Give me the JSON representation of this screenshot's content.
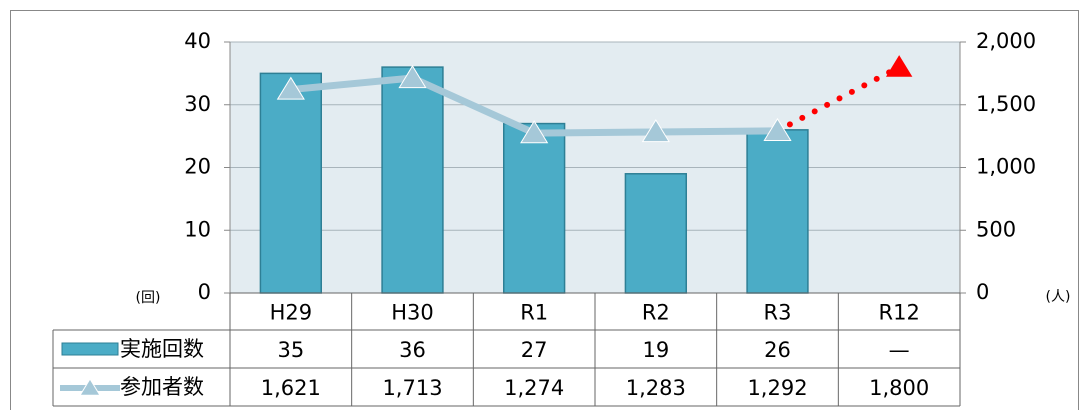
{
  "chart_data": {
    "type": "bar_line",
    "categories": [
      "H29",
      "H30",
      "R1",
      "R2",
      "R3",
      "R12"
    ],
    "series": [
      {
        "name": "実施回数",
        "color": "#4bacc6",
        "values": [
          35,
          36,
          27,
          19,
          26,
          null
        ],
        "value_labels": [
          "35",
          "36",
          "27",
          "19",
          "26",
          "—"
        ]
      },
      {
        "name": "参加者数",
        "color": "#a5c8d8",
        "axis": "y2",
        "values": [
          1621,
          1713,
          1274,
          1283,
          1292,
          1800
        ],
        "value_labels": [
          "1,621",
          "1,713",
          "1,274",
          "1,283",
          "1,292",
          "1,800"
        ]
      }
    ],
    "ylabel": "(回)",
    "y2label": "(人)",
    "ylim": [
      0,
      40
    ],
    "yticks": [
      0,
      10,
      20,
      30,
      40
    ],
    "y2lim": [
      0,
      2000
    ],
    "y2ticks": [
      0,
      500,
      {
        "value": 1000,
        "label": "1,000"
      },
      {
        "value": 1500,
        "label": "1,500"
      },
      {
        "value": 2000,
        "label": "2,000"
      }
    ],
    "grid": true,
    "projection_color": "#ff0000"
  }
}
